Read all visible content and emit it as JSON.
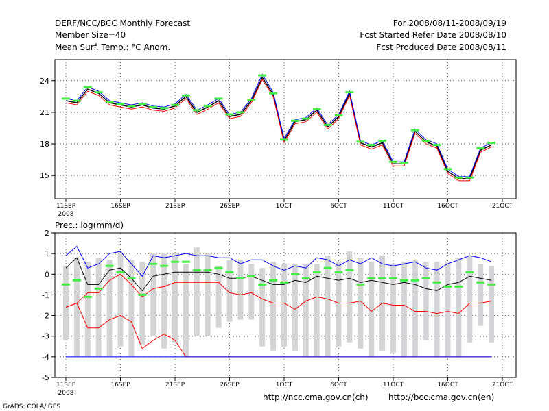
{
  "header": {
    "title": "DERF/NCC/BCC Monthly Forecast",
    "member_size": "Member Size=40",
    "variable": "Mean Surf. Temp.: °C Anom.",
    "period": "For 2008/08/11-2008/09/19",
    "started": "Fcst Started Refer Date 2008/08/10",
    "produced": "Fcst Produced Date 2008/08/11"
  },
  "footer": {
    "grads": "GrADS: COLA/IGES",
    "url_ch": "http://ncc.cma.gov.cn(ch)",
    "url_en": "http://bcc.cma.gov.cn(en)"
  },
  "chart_data": [
    {
      "type": "line",
      "title": "Mean Surf. Temp.: °C Anom.",
      "xlabel": "",
      "ylabel": "",
      "x_ticks": [
        "11SEP",
        "16SEP",
        "21SEP",
        "26SEP",
        "1OCT",
        "6OCT",
        "11OCT",
        "16OCT",
        "21OCT"
      ],
      "x_sublabel": "2008",
      "xlim": [
        0,
        40
      ],
      "ylim": [
        12.8,
        26
      ],
      "y_ticks": [
        15,
        18,
        21,
        24
      ],
      "grid": true,
      "series": [
        {
          "name": "mean",
          "color": "#000000",
          "values": [
            22.1,
            21.9,
            23.2,
            22.8,
            21.9,
            21.7,
            21.5,
            21.7,
            21.4,
            21.3,
            21.6,
            22.5,
            21.0,
            21.5,
            22.1,
            20.6,
            20.8,
            22.1,
            24.3,
            22.7,
            18.3,
            20.1,
            20.3,
            21.2,
            19.6,
            20.6,
            22.8,
            18.1,
            17.7,
            18.1,
            16.1,
            16.1,
            19.2,
            18.2,
            17.8,
            15.4,
            14.7,
            14.7,
            17.4,
            17.9
          ]
        },
        {
          "name": "upper",
          "color": "#0000ff",
          "values": [
            22.3,
            22.1,
            23.4,
            23.0,
            22.1,
            21.9,
            21.7,
            21.9,
            21.6,
            21.5,
            21.8,
            22.7,
            21.2,
            21.7,
            22.3,
            20.8,
            21.0,
            22.3,
            24.6,
            22.9,
            18.5,
            20.3,
            20.5,
            21.4,
            19.8,
            20.8,
            23.0,
            18.3,
            17.9,
            18.3,
            16.3,
            16.3,
            19.4,
            18.4,
            18.0,
            15.6,
            14.9,
            14.9,
            17.6,
            18.1
          ]
        },
        {
          "name": "lower",
          "color": "#ff0000",
          "values": [
            21.9,
            21.7,
            23.0,
            22.6,
            21.7,
            21.5,
            21.3,
            21.5,
            21.2,
            21.1,
            21.4,
            22.3,
            20.8,
            21.3,
            21.9,
            20.4,
            20.6,
            21.9,
            24.1,
            22.5,
            18.1,
            19.9,
            20.1,
            21.0,
            19.4,
            20.4,
            22.6,
            17.9,
            17.5,
            17.9,
            15.9,
            15.9,
            19.0,
            18.0,
            17.6,
            15.2,
            14.5,
            14.5,
            17.2,
            17.7
          ]
        },
        {
          "name": "observed",
          "color": "#44ee44",
          "style": "marker",
          "values": [
            22.3,
            22.1,
            23.4,
            22.9,
            22.0,
            21.8,
            21.6,
            21.8,
            21.5,
            21.4,
            21.7,
            22.6,
            21.2,
            21.6,
            22.3,
            20.8,
            21.0,
            22.2,
            24.5,
            22.8,
            18.4,
            20.2,
            20.4,
            21.3,
            19.8,
            20.7,
            22.9,
            18.2,
            17.9,
            18.3,
            16.3,
            16.2,
            19.3,
            18.3,
            17.9,
            15.6,
            14.8,
            14.8,
            17.6,
            18.1
          ]
        }
      ]
    },
    {
      "type": "line",
      "title": "Prec.: log(mm/d)",
      "xlabel": "",
      "ylabel": "",
      "x_ticks": [
        "11SEP",
        "16SEP",
        "21SEP",
        "26SEP",
        "1OCT",
        "6OCT",
        "11OCT",
        "16OCT",
        "21OCT"
      ],
      "x_sublabel": "2008",
      "xlim": [
        0,
        40
      ],
      "ylim": [
        -5,
        2
      ],
      "y_ticks": [
        -5,
        -4,
        -3,
        -2,
        -1,
        0,
        1,
        2
      ],
      "grid": true,
      "series": [
        {
          "name": "max",
          "color": "#0000ff",
          "values": [
            0.9,
            1.35,
            0.3,
            0.5,
            1.0,
            1.1,
            0.5,
            -0.1,
            0.9,
            0.8,
            0.9,
            1.0,
            0.9,
            0.9,
            0.8,
            0.8,
            0.5,
            0.7,
            0.7,
            0.4,
            0.2,
            0.4,
            0.3,
            0.8,
            0.7,
            0.4,
            0.7,
            0.5,
            0.8,
            0.5,
            0.4,
            0.5,
            0.6,
            0.3,
            0.2,
            0.5,
            0.7,
            0.9,
            0.8,
            0.6
          ]
        },
        {
          "name": "mean",
          "color": "#000000",
          "values": [
            0.3,
            0.8,
            -0.5,
            -0.5,
            0.2,
            0.3,
            -0.2,
            -0.8,
            -0.1,
            0.0,
            0.1,
            0.1,
            0.1,
            0.1,
            0.0,
            -0.2,
            -0.2,
            -0.1,
            -0.3,
            -0.5,
            -0.5,
            -0.3,
            -0.4,
            -0.1,
            -0.2,
            -0.3,
            -0.2,
            -0.4,
            -0.3,
            -0.4,
            -0.5,
            -0.4,
            -0.5,
            -0.7,
            -0.8,
            -0.5,
            -0.4,
            -0.1,
            -0.2,
            -0.3
          ]
        },
        {
          "name": "min",
          "color": "#ff0000",
          "values": [
            -1.6,
            -1.4,
            -2.6,
            -2.6,
            -2.2,
            -2.0,
            -2.3,
            -3.6,
            -3.2,
            -2.9,
            -3.2,
            -4.0,
            -4.0,
            -4.0,
            -4.0,
            -4.0,
            -4.0,
            -4.0,
            -4.0,
            -4.0,
            -4.0,
            -4.0,
            -4.0,
            -4.0,
            -4.0,
            -4.0,
            -4.0,
            -4.0,
            -4.0,
            -4.0,
            -4.0,
            -4.0,
            -4.0,
            -4.0,
            -4.0,
            -4.0,
            -4.0,
            -4.0,
            -4.0,
            -4.0
          ]
        },
        {
          "name": "mid_red",
          "color": "#ff0000",
          "values": [
            -1.6,
            -1.4,
            -0.9,
            -0.9,
            -0.3,
            0.0,
            -0.5,
            -1.1,
            -0.7,
            -0.6,
            -0.4,
            -0.4,
            -0.4,
            -0.4,
            -0.4,
            -0.9,
            -1.0,
            -0.9,
            -1.2,
            -1.4,
            -1.4,
            -1.7,
            -1.3,
            -1.1,
            -1.2,
            -1.4,
            -1.4,
            -1.3,
            -1.8,
            -1.4,
            -1.5,
            -1.5,
            -1.8,
            -1.8,
            -1.9,
            -1.8,
            -1.9,
            -1.4,
            -1.4,
            -1.3
          ]
        },
        {
          "name": "floor",
          "color": "#0000ff",
          "values": [
            -4,
            -4,
            -4,
            -4,
            -4,
            -4,
            -4,
            -4,
            -4,
            -4,
            -4,
            -4,
            -4,
            -4,
            -4,
            -4,
            -4,
            -4,
            -4,
            -4,
            -4,
            -4,
            -4,
            -4,
            -4,
            -4,
            -4,
            -4,
            -4,
            -4,
            -4,
            -4,
            -4,
            -4,
            -4,
            -4,
            -4,
            -4,
            -4,
            -4
          ]
        },
        {
          "name": "observed",
          "color": "#44ee44",
          "style": "marker",
          "values": [
            -0.5,
            -0.3,
            -1.1,
            -0.7,
            0.4,
            0.1,
            -0.2,
            -1.0,
            0.5,
            0.4,
            0.6,
            0.6,
            0.2,
            0.2,
            0.3,
            0.1,
            -0.2,
            -0.1,
            -0.5,
            -0.3,
            -0.4,
            0.0,
            -0.2,
            0.1,
            0.3,
            0.1,
            0.2,
            -0.5,
            -0.2,
            -0.2,
            -0.2,
            -0.3,
            -0.3,
            -0.2,
            -0.4,
            -0.6,
            -0.6,
            0.1,
            -0.4,
            -0.5
          ]
        }
      ],
      "boxes": {
        "color": "#d4d4d6",
        "top": [
          0.4,
          0.8,
          0.6,
          0.8,
          0.7,
          1.0,
          0.7,
          0.6,
          1.0,
          1.0,
          1.0,
          0.5,
          1.3,
          1.0,
          0.4,
          0.7,
          0.7,
          0.5,
          0.3,
          0.6,
          0.5,
          0.5,
          0.5,
          0.5,
          0.9,
          0.6,
          1.1,
          0.8,
          0.6,
          0.9,
          0.5,
          0.6,
          0.7,
          0.6,
          0.6,
          0.6,
          0.8,
          0.9,
          0.5,
          0.4
        ],
        "bottom": [
          -3.2,
          -4.0,
          -4.0,
          -4.0,
          -4.0,
          -3.5,
          -4.0,
          -3.4,
          -3.0,
          -3.6,
          -3.3,
          -4.0,
          -3.0,
          -3.0,
          -2.6,
          -2.3,
          -2.2,
          -2.2,
          -3.5,
          -3.7,
          -3.5,
          -3.7,
          -4.0,
          -4.0,
          -4.0,
          -3.5,
          -3.3,
          -3.6,
          -4.0,
          -3.7,
          -3.8,
          -4.0,
          -4.0,
          -3.2,
          -4.0,
          -4.0,
          -4.0,
          -3.3,
          -2.5,
          -3.3
        ]
      }
    }
  ]
}
